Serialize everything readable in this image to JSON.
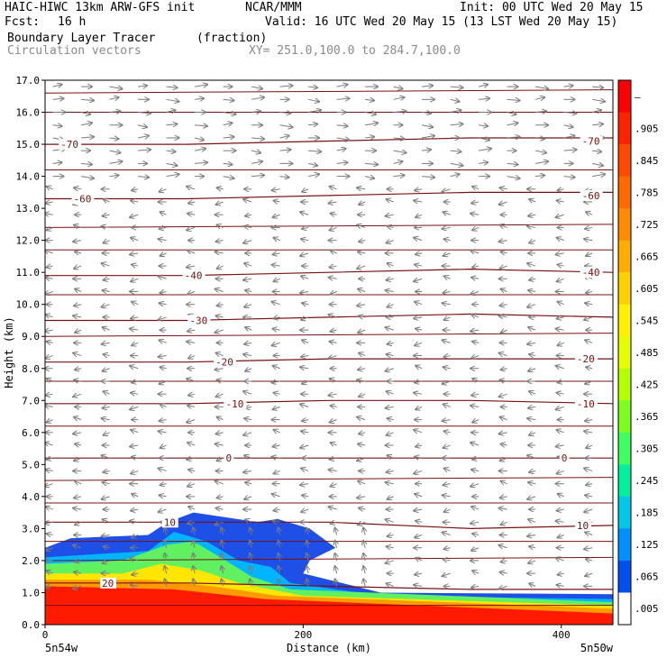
{
  "header": {
    "model": "HAIC-HIWC 13km ARW-GFS init",
    "org": "NCAR/MMM",
    "init": "Init: 00 UTC Wed 20 May 15",
    "fcst_label": "Fcst:",
    "fcst_value": "16 h",
    "valid": "Valid: 16 UTC Wed 20 May 15 (13 LST Wed 20 May 15)",
    "field": "Boundary Layer Tracer",
    "units": "(fraction)",
    "vectors": "Circulation vectors",
    "xy": "XY= 251.0,100.0 to 284.7,100.0"
  },
  "colors": {
    "contour": "#7a1010",
    "vector": "#7a7a7a",
    "frame": "#000000"
  },
  "chart_data": {
    "type": "heatmap",
    "xlabel": "Distance (km)",
    "ylabel": "Height (km)",
    "xlim": [
      0,
      440
    ],
    "ylim": [
      0,
      17
    ],
    "x_ticks": [
      0,
      200,
      400
    ],
    "x_tick_labels": [
      "0",
      "200",
      "400"
    ],
    "x_end_labels": [
      "5n54w",
      "5n50w"
    ],
    "y_ticks": [
      0,
      1,
      2,
      3,
      4,
      5,
      6,
      7,
      8,
      9,
      10,
      11,
      12,
      13,
      14,
      15,
      16,
      17
    ],
    "y_tick_labels": [
      "0.0",
      "1.0",
      "2.0",
      "3.0",
      "4.0",
      "5.0",
      "6.0",
      "7.0",
      "8.0",
      "9.0",
      "10.0",
      "11.0",
      "12.0",
      "13.0",
      "14.0",
      "15.0",
      "16.0",
      "17.0"
    ],
    "colorbar": {
      "labels": [
        "–",
        ".905",
        ".845",
        ".785",
        ".725",
        ".665",
        ".605",
        ".545",
        ".485",
        ".425",
        ".365",
        ".305",
        ".245",
        ".185",
        ".125",
        ".065",
        ".005"
      ],
      "colors": [
        "#ff0000",
        "#ff2400",
        "#ff4800",
        "#ff6a00",
        "#ff8c00",
        "#ffae00",
        "#ffd000",
        "#fff000",
        "#e6ff00",
        "#b4ff00",
        "#7cff20",
        "#40ff60",
        "#00f0a0",
        "#00c8e6",
        "#0090ff",
        "#0050f0",
        "#ffffff"
      ]
    },
    "temperature_contours": [
      {
        "label": "-70",
        "y": [
          15.0,
          15.0,
          15.1,
          15.2,
          15.2
        ]
      },
      {
        "label": "-60",
        "y": [
          13.3,
          13.3,
          13.4,
          13.5,
          13.5
        ]
      },
      {
        "label": "-40",
        "y": [
          10.9,
          10.9,
          11.0,
          11.1,
          11.0
        ]
      },
      {
        "label": "-30",
        "y": [
          9.5,
          9.5,
          9.6,
          9.7,
          9.6
        ]
      },
      {
        "label": "-20",
        "y": [
          8.2,
          8.2,
          8.3,
          8.3,
          8.3
        ]
      },
      {
        "label": "-10",
        "y": [
          6.9,
          6.9,
          7.0,
          7.0,
          6.9
        ]
      },
      {
        "label": "0",
        "y": [
          5.2,
          5.2,
          5.2,
          5.2,
          5.2
        ]
      },
      {
        "label": "10",
        "y": [
          3.2,
          3.2,
          3.2,
          3.0,
          3.1
        ]
      },
      {
        "label": "20",
        "y": [
          1.3,
          1.3,
          1.2,
          1.1,
          1.1
        ]
      }
    ],
    "contour_x": [
      0,
      110,
      220,
      330,
      440
    ],
    "tracer_regions": [
      {
        "level": ".065",
        "color": "#1e4fe6",
        "points": [
          [
            0,
            2.4
          ],
          [
            20,
            2.7
          ],
          [
            80,
            2.8
          ],
          [
            95,
            3.2
          ],
          [
            115,
            3.5
          ],
          [
            165,
            3.2
          ],
          [
            180,
            3.3
          ],
          [
            205,
            3.0
          ],
          [
            225,
            2.4
          ],
          [
            205,
            2.0
          ],
          [
            200,
            1.6
          ],
          [
            260,
            1.0
          ],
          [
            440,
            0.95
          ],
          [
            440,
            0
          ],
          [
            0,
            0
          ]
        ]
      },
      {
        "level": ".185",
        "color": "#00b4ff",
        "points": [
          [
            0,
            2.1
          ],
          [
            40,
            2.2
          ],
          [
            80,
            2.3
          ],
          [
            100,
            2.9
          ],
          [
            125,
            2.6
          ],
          [
            150,
            2.0
          ],
          [
            175,
            1.8
          ],
          [
            190,
            1.3
          ],
          [
            260,
            0.9
          ],
          [
            440,
            0.8
          ],
          [
            440,
            0
          ],
          [
            0,
            0
          ]
        ]
      },
      {
        "level": ".365",
        "color": "#60f060",
        "points": [
          [
            0,
            1.9
          ],
          [
            60,
            2.0
          ],
          [
            95,
            2.5
          ],
          [
            115,
            2.6
          ],
          [
            140,
            2.0
          ],
          [
            160,
            1.5
          ],
          [
            190,
            1.1
          ],
          [
            440,
            0.7
          ],
          [
            440,
            0
          ],
          [
            0,
            0
          ]
        ]
      },
      {
        "level": ".545",
        "color": "#ffe600",
        "points": [
          [
            0,
            1.6
          ],
          [
            60,
            1.6
          ],
          [
            90,
            1.9
          ],
          [
            120,
            1.7
          ],
          [
            150,
            1.3
          ],
          [
            200,
            0.9
          ],
          [
            440,
            0.6
          ],
          [
            440,
            0
          ],
          [
            0,
            0
          ]
        ]
      },
      {
        "level": ".725",
        "color": "#ff9a00",
        "points": [
          [
            0,
            1.4
          ],
          [
            80,
            1.4
          ],
          [
            130,
            1.2
          ],
          [
            180,
            0.9
          ],
          [
            440,
            0.5
          ],
          [
            440,
            0
          ],
          [
            0,
            0
          ]
        ]
      },
      {
        "level": ".905",
        "color": "#ff1a00",
        "points": [
          [
            0,
            1.2
          ],
          [
            100,
            1.1
          ],
          [
            170,
            0.8
          ],
          [
            440,
            0.35
          ],
          [
            440,
            0
          ],
          [
            0,
            0
          ]
        ]
      }
    ],
    "contour_labels": [
      {
        "text": "-70",
        "x": 12,
        "y": 15.0
      },
      {
        "text": "-70",
        "x": 416,
        "y": 15.1
      },
      {
        "text": "-60",
        "x": 22,
        "y": 13.3
      },
      {
        "text": "-60",
        "x": 416,
        "y": 13.4
      },
      {
        "text": "-40",
        "x": 108,
        "y": 10.9
      },
      {
        "text": "-40",
        "x": 416,
        "y": 11.0
      },
      {
        "text": "-30",
        "x": 112,
        "y": 9.5
      },
      {
        "text": "-20",
        "x": 132,
        "y": 8.2
      },
      {
        "text": "-20",
        "x": 412,
        "y": 8.3
      },
      {
        "text": "-10",
        "x": 140,
        "y": 6.9
      },
      {
        "text": "-10",
        "x": 412,
        "y": 6.9
      },
      {
        "text": "0",
        "x": 140,
        "y": 5.2
      },
      {
        "text": "0",
        "x": 400,
        "y": 5.2
      },
      {
        "text": "10",
        "x": 92,
        "y": 3.2
      },
      {
        "text": "10",
        "x": 412,
        "y": 3.1
      },
      {
        "text": "20",
        "x": 44,
        "y": 1.3
      }
    ],
    "vectors": {
      "x_spacing": 22,
      "upper_levels": [
        16.8,
        16.4,
        16.0,
        15.6,
        15.2,
        14.8,
        14.4,
        14.0
      ],
      "upper_direction": "east",
      "lower_levels": [
        13.6,
        13.2,
        12.8,
        12.4,
        12.0,
        11.6,
        11.2,
        10.8,
        10.4,
        10.0,
        9.6,
        9.2,
        8.8,
        8.4,
        8.0,
        7.6,
        7.2,
        6.8,
        6.4,
        6.0,
        5.6,
        5.2,
        4.8,
        4.4,
        4.0,
        3.6,
        3.2,
        2.8,
        2.4,
        2.0,
        1.6,
        1.2
      ],
      "lower_direction": "west"
    }
  }
}
